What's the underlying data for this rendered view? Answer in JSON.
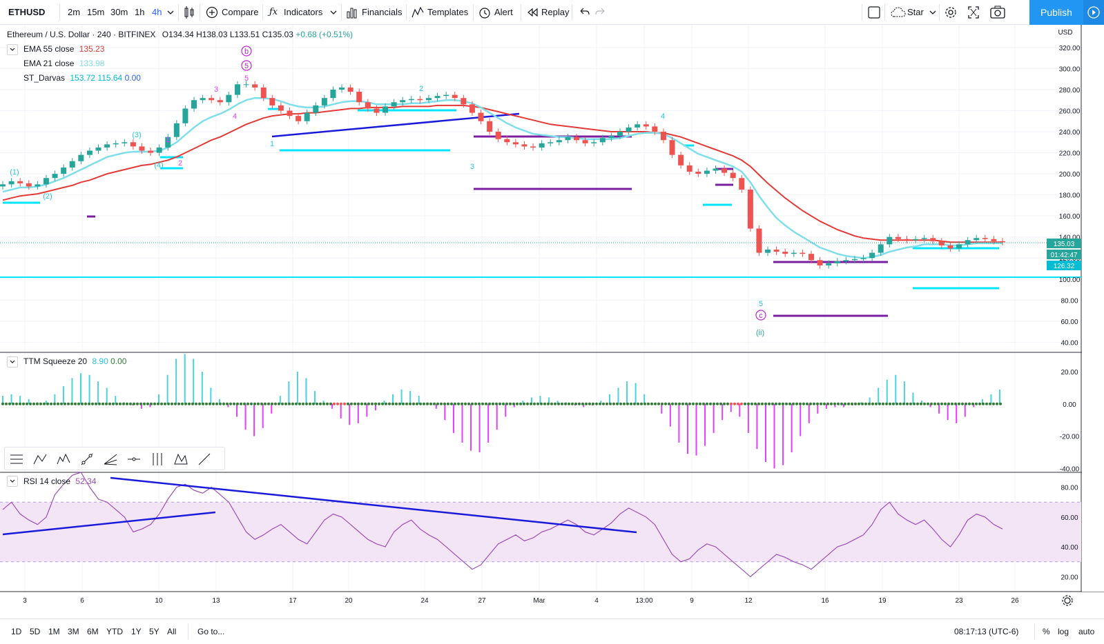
{
  "toolbar": {
    "symbol": "ETHUSD",
    "intervals": [
      "2m",
      "15m",
      "30m",
      "1h",
      "4h"
    ],
    "active_interval": "4h",
    "compare_label": "Compare",
    "indicators_label": "Indicators",
    "financials_label": "Financials",
    "templates_label": "Templates",
    "alert_label": "Alert",
    "replay_label": "Replay",
    "star_label": "Star",
    "publish_label": "Publish"
  },
  "legend": {
    "title": "Ethereum / U.S. Dollar · 240 · BITFINEX",
    "ohlc": {
      "o": "O134.34",
      "h": "H138.03",
      "l": "L133.51",
      "c": "C135.03",
      "chg": "+0.68 (+0.51%)"
    },
    "ema55": {
      "name": "EMA 55 close",
      "value": "135.23"
    },
    "ema21": {
      "name": "EMA 21 close",
      "value": "133.98"
    },
    "darvas": {
      "name": "ST_Darvas",
      "v1": "153.72",
      "v2": "115.64",
      "v3": "0.00"
    },
    "ttm": {
      "name": "TTM Squeeze 20",
      "v1": "8.90",
      "v2": "0.00"
    },
    "rsi": {
      "name": "RSI 14 close",
      "value": "52.34"
    }
  },
  "colors": {
    "up": "#26a69a",
    "down": "#ef5350",
    "ema55": "#e53935",
    "ema21": "#80deea",
    "darvas": "#00e5ff",
    "box": "#7b1fa2",
    "trend": "#1a1adb",
    "rsi": "#9c4fb8",
    "rsi_band": "#f3e5f5",
    "ttm_pos": "#4dd0e1",
    "ttm_neg": "#e040fb",
    "accent": "#2962ff"
  },
  "chart_data": {
    "type": "candlestick",
    "symbol": "ETHUSD",
    "price_axis": {
      "unit": "USD",
      "ticks": [
        "320.00",
        "300.00",
        "280.00",
        "260.00",
        "240.00",
        "220.00",
        "200.00",
        "180.00",
        "160.00",
        "140.00",
        "120.00",
        "100.00",
        "80.00",
        "60.00",
        "40.00"
      ],
      "range": [
        35,
        335
      ]
    },
    "time_axis": {
      "ticks": [
        "3",
        "6",
        "10",
        "13",
        "17",
        "20",
        "24",
        "27",
        "Mar",
        "4",
        "13:00",
        "9",
        "12",
        "16",
        "19",
        "23",
        "26"
      ]
    },
    "price_labels": {
      "last": "135.03",
      "countdown": "01:42:47",
      "line": "126.32"
    },
    "close_series": [
      190,
      193,
      191,
      188,
      190,
      196,
      200,
      206,
      212,
      218,
      222,
      225,
      228,
      229,
      230,
      226,
      222,
      220,
      225,
      235,
      248,
      262,
      270,
      272,
      270,
      268,
      275,
      285,
      285,
      282,
      272,
      265,
      260,
      255,
      250,
      258,
      265,
      272,
      280,
      282,
      278,
      268,
      262,
      258,
      264,
      268,
      270,
      271,
      270,
      272,
      274,
      275,
      272,
      266,
      258,
      250,
      240,
      233,
      230,
      228,
      226,
      225,
      229,
      230,
      232,
      235,
      232,
      229,
      230,
      234,
      236,
      240,
      244,
      247,
      245,
      240,
      232,
      218,
      208,
      202,
      200,
      203,
      205,
      201,
      196,
      185,
      148,
      125,
      128,
      126,
      124,
      125,
      124,
      118,
      113,
      115,
      117,
      118,
      119,
      120,
      125,
      133,
      140,
      138,
      137,
      138,
      139,
      136,
      132,
      129,
      133,
      137,
      139,
      138,
      136,
      135
    ],
    "ema21_series": [
      183,
      185,
      187,
      187,
      188,
      190,
      193,
      196,
      200,
      204,
      208,
      212,
      216,
      218,
      220,
      221,
      221,
      221,
      222,
      225,
      230,
      237,
      244,
      250,
      254,
      257,
      261,
      266,
      270,
      272,
      272,
      271,
      269,
      266,
      264,
      263,
      263,
      264,
      266,
      268,
      269,
      269,
      268,
      266,
      266,
      266,
      266,
      267,
      267,
      268,
      269,
      270,
      270,
      269,
      267,
      263,
      258,
      253,
      248,
      244,
      241,
      238,
      237,
      236,
      235,
      235,
      234,
      233,
      233,
      233,
      233,
      234,
      236,
      238,
      239,
      239,
      238,
      234,
      229,
      224,
      219,
      216,
      213,
      210,
      207,
      202,
      192,
      179,
      168,
      158,
      151,
      145,
      140,
      135,
      130,
      127,
      124,
      122,
      121,
      120,
      121,
      123,
      126,
      128,
      130,
      131,
      133,
      133,
      133,
      132,
      132,
      133,
      134,
      134,
      134,
      134
    ],
    "ema55_series": [
      175,
      177,
      179,
      180,
      181,
      183,
      185,
      187,
      189,
      192,
      194,
      197,
      200,
      202,
      204,
      206,
      208,
      209,
      211,
      213,
      216,
      220,
      224,
      228,
      232,
      235,
      239,
      243,
      247,
      250,
      253,
      255,
      256,
      257,
      257,
      258,
      258,
      259,
      260,
      261,
      262,
      262,
      263,
      263,
      263,
      263,
      264,
      264,
      264,
      264,
      265,
      265,
      265,
      265,
      264,
      263,
      261,
      259,
      257,
      255,
      253,
      251,
      249,
      247,
      246,
      245,
      244,
      243,
      242,
      241,
      240,
      240,
      240,
      240,
      240,
      239,
      239,
      237,
      235,
      232,
      229,
      226,
      223,
      220,
      217,
      213,
      207,
      199,
      191,
      184,
      177,
      171,
      165,
      160,
      155,
      151,
      147,
      144,
      141,
      139,
      138,
      137,
      137,
      137,
      137,
      137,
      137,
      137,
      136,
      135,
      135,
      135,
      135,
      135,
      135,
      135
    ],
    "rsi": {
      "range": [
        10,
        90
      ],
      "ticks": [
        "80.00",
        "60.00",
        "40.00",
        "20.00"
      ],
      "upper": 70,
      "lower": 30,
      "last": 52.34,
      "series": [
        65,
        70,
        62,
        58,
        55,
        60,
        75,
        82,
        88,
        90,
        80,
        72,
        70,
        65,
        60,
        50,
        52,
        55,
        62,
        72,
        80,
        82,
        78,
        76,
        80,
        75,
        70,
        60,
        50,
        45,
        48,
        52,
        55,
        50,
        45,
        42,
        50,
        58,
        62,
        60,
        55,
        50,
        45,
        42,
        40,
        50,
        55,
        58,
        52,
        48,
        45,
        40,
        35,
        30,
        25,
        28,
        35,
        42,
        45,
        48,
        44,
        46,
        50,
        52,
        55,
        58,
        55,
        50,
        48,
        52,
        56,
        62,
        66,
        63,
        60,
        55,
        45,
        35,
        30,
        32,
        38,
        42,
        40,
        35,
        30,
        25,
        20,
        25,
        30,
        35,
        33,
        30,
        28,
        25,
        30,
        35,
        40,
        42,
        45,
        48,
        55,
        65,
        70,
        62,
        58,
        55,
        58,
        52,
        45,
        40,
        48,
        58,
        62,
        60,
        55,
        52
      ]
    },
    "ttm": {
      "range": [
        -42,
        32
      ],
      "ticks": [
        "20.00",
        "0.00",
        "-20.00",
        "-40.00"
      ],
      "last": 8.9,
      "series": [
        5,
        6,
        5,
        3,
        1,
        2,
        6,
        11,
        16,
        19,
        18,
        14,
        10,
        5,
        1,
        -1,
        -3,
        -2,
        6,
        18,
        28,
        31,
        28,
        20,
        10,
        3,
        -2,
        -8,
        -16,
        -20,
        -15,
        -6,
        5,
        14,
        20,
        16,
        8,
        2,
        -3,
        -9,
        -13,
        -12,
        -8,
        -4,
        2,
        6,
        9,
        8,
        5,
        1,
        -3,
        -10,
        -18,
        -24,
        -29,
        -30,
        -24,
        -16,
        -8,
        -2,
        2,
        4,
        5,
        4,
        2,
        1,
        -1,
        -2,
        -1,
        2,
        6,
        10,
        14,
        13,
        6,
        0,
        -6,
        -14,
        -24,
        -31,
        -32,
        -26,
        -18,
        -10,
        -5,
        -8,
        -18,
        -28,
        -36,
        -40,
        -38,
        -30,
        -20,
        -12,
        -6,
        -3,
        -2,
        -2,
        -1,
        1,
        4,
        10,
        15,
        18,
        14,
        7,
        2,
        -2,
        -6,
        -10,
        -12,
        -8,
        -2,
        3,
        6,
        8.9
      ]
    }
  }
}
